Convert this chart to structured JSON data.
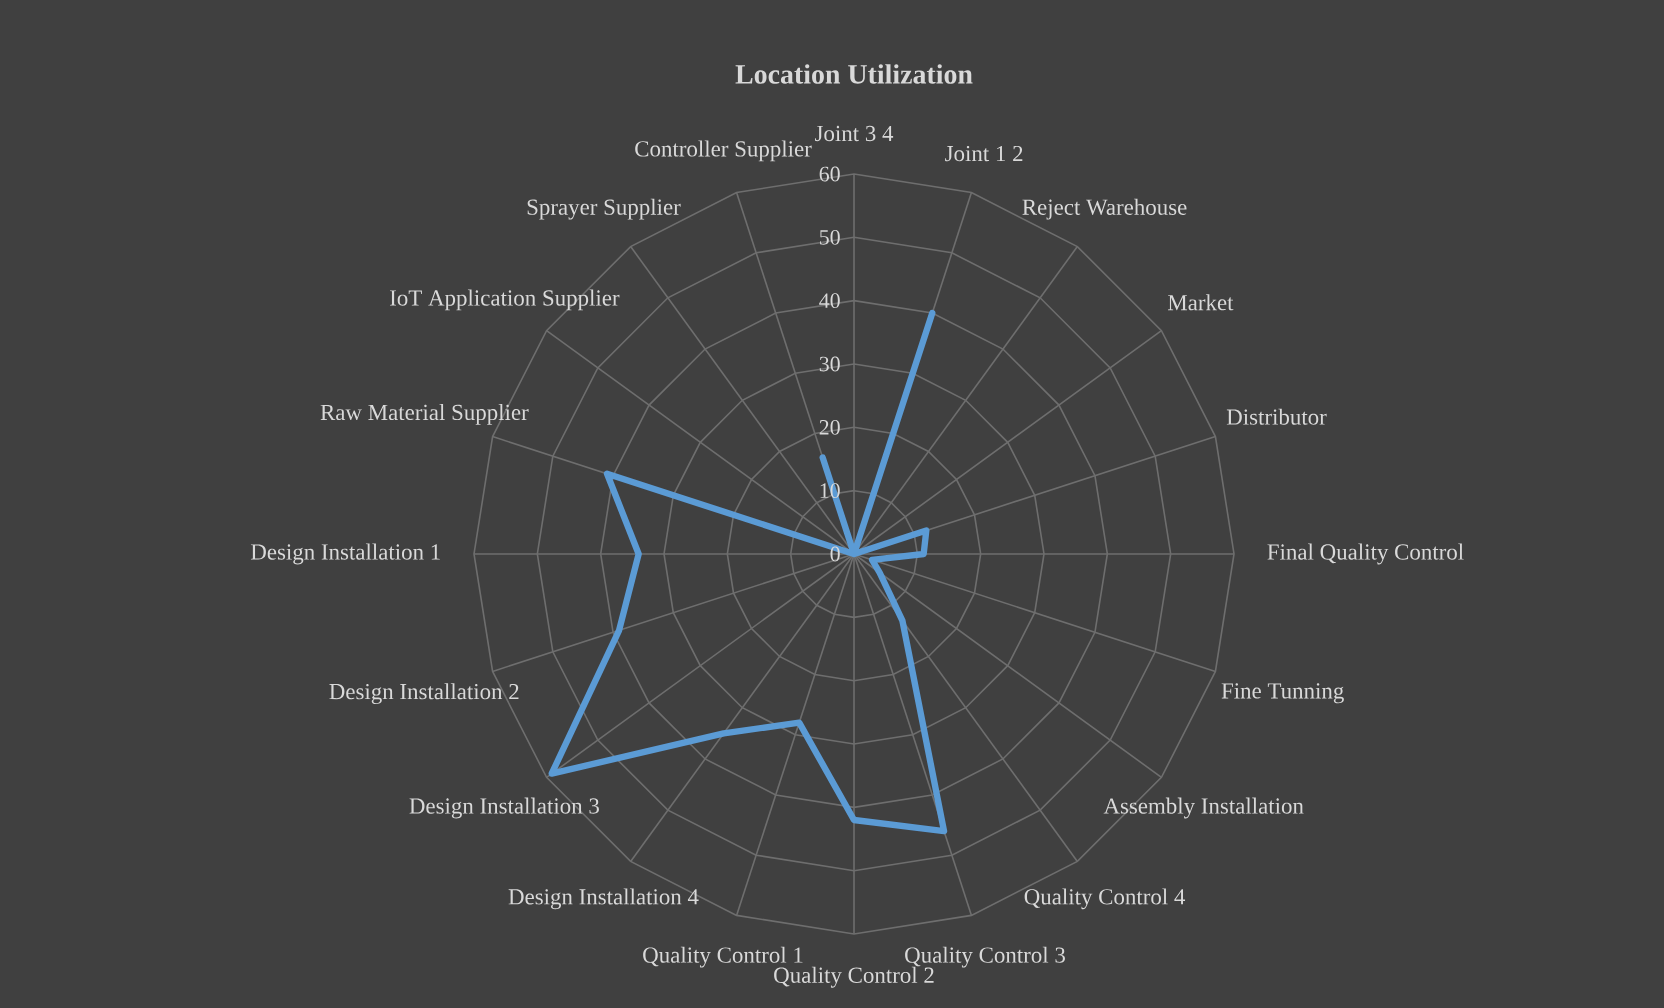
{
  "chart_data": {
    "type": "radar",
    "title": "Location Utilization",
    "categories": [
      "Joint 3 4",
      "Joint 1 2",
      "Reject Warehouse",
      "Market",
      "Distributor",
      "Final Quality Control",
      "Fine Tunning",
      "Assembly Installation",
      "Quality Control 4",
      "Quality Control 3",
      "Quality Control 2",
      "Quality Control 1",
      "Design Installation 4",
      "Design Installation 3",
      "Design Installation 2",
      "Design Installation 1",
      "Raw Material Supplier",
      "IoT Application Supplier",
      "Sprayer Supplier",
      "Controller Supplier"
    ],
    "series": [
      {
        "color": "#5b9bd5",
        "values": [
          0,
          40,
          0,
          0,
          12,
          11,
          3,
          5,
          13,
          46,
          42,
          28,
          35,
          59,
          39,
          34,
          41,
          0,
          0,
          16
        ]
      }
    ],
    "ylim": [
      0,
      60
    ],
    "yticks": [
      0,
      10,
      20,
      30,
      40,
      50,
      60
    ],
    "grid": true
  }
}
